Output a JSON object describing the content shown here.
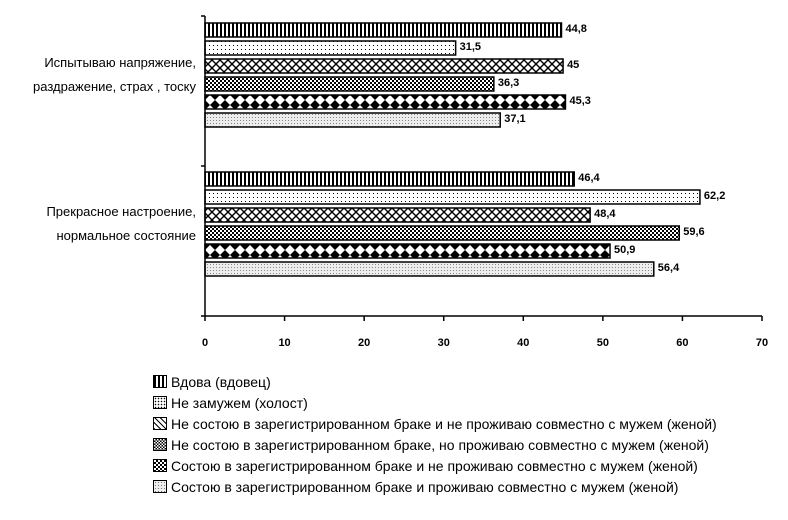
{
  "chart_data": {
    "type": "bar",
    "orientation": "horizontal",
    "categories": [
      [
        "Испытываю напряжение,",
        "раздражение, страх , тоску"
      ],
      [
        "Прекрасное настроение,",
        "нормальное состояние"
      ]
    ],
    "series": [
      {
        "name": "Вдова (вдовец)",
        "values": [
          44.8,
          46.4
        ],
        "labels": [
          "44,8",
          "46,4"
        ],
        "pattern": "vertical"
      },
      {
        "name": "Не замужем (холост)",
        "values": [
          31.5,
          62.2
        ],
        "labels": [
          "31,5",
          "62,2"
        ],
        "pattern": "dots"
      },
      {
        "name": "Не состою в зарегистрированном браке и не проживаю совместно с мужем (женой)",
        "values": [
          45,
          48.4
        ],
        "labels": [
          "45",
          "48,4"
        ],
        "pattern": "crosshatch"
      },
      {
        "name": "Не состою в зарегистрированном браке, но проживаю совместно с мужем (женой)",
        "values": [
          36.3,
          59.6
        ],
        "labels": [
          "36,3",
          "59,6"
        ],
        "pattern": "checker"
      },
      {
        "name": "Состою в зарегистрированном браке и не проживаю совместно с мужем (женой)",
        "values": [
          45.3,
          50.9
        ],
        "labels": [
          "45,3",
          "50,9"
        ],
        "pattern": "diamond"
      },
      {
        "name": "Состою в зарегистрированном браке и проживаю совместно с мужем (женой)",
        "values": [
          37.1,
          56.4
        ],
        "labels": [
          "37,1",
          "56,4"
        ],
        "pattern": "fine-dots"
      }
    ],
    "xlim": [
      0,
      70
    ],
    "xticks": [
      "0",
      "10",
      "20",
      "30",
      "40",
      "50",
      "60",
      "70"
    ],
    "title": "",
    "xlabel": "",
    "ylabel": "",
    "grid": false,
    "legend_position": "bottom"
  }
}
